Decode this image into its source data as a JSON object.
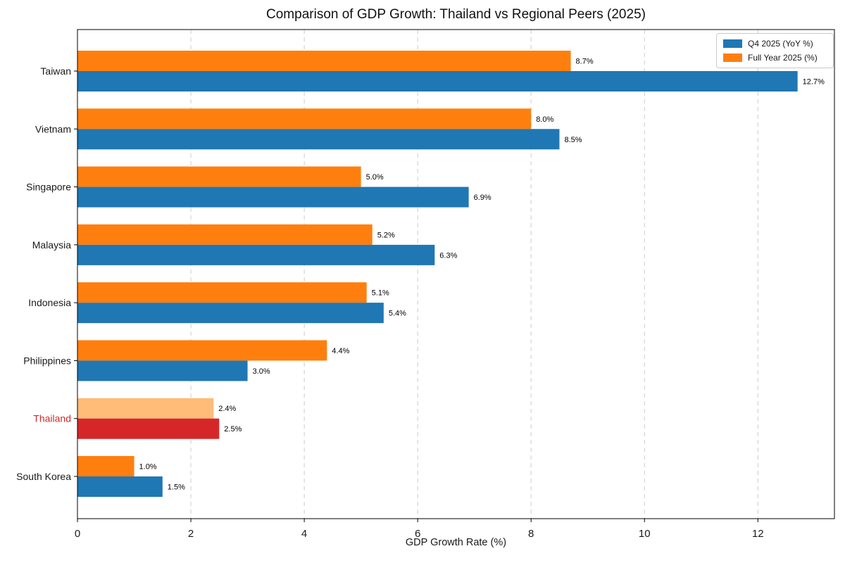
{
  "window": {
    "background": "#ffffff"
  },
  "chart_data": {
    "type": "bar",
    "orientation": "horizontal",
    "title": "Comparison of GDP Growth: Thailand vs Regional Peers (2025)",
    "xlabel": "GDP Growth Rate (%)",
    "ylabel": "",
    "xlim": [
      0,
      13.35
    ],
    "xticks": [
      0,
      2,
      4,
      6,
      8,
      10,
      12
    ],
    "grid": {
      "axis": "x",
      "style": "dashed",
      "color": "#cccccc"
    },
    "legend": {
      "position": "upper-right"
    },
    "categories": [
      "Taiwan",
      "Vietnam",
      "Singapore",
      "Malaysia",
      "Indonesia",
      "Philippines",
      "Thailand",
      "South Korea"
    ],
    "highlight": {
      "category": "Thailand",
      "label_color": "#d62728"
    },
    "series": [
      {
        "name": "Q4 2025 (YoY %)",
        "color": "#1f77b4",
        "highlight_color": "#d62728",
        "values": [
          12.7,
          8.5,
          6.9,
          6.3,
          5.4,
          3.0,
          2.5,
          1.5
        ]
      },
      {
        "name": "Full Year 2025 (%)",
        "color": "#ff7f0e",
        "highlight_color": "#ffbb78",
        "values": [
          8.7,
          8.0,
          5.0,
          5.2,
          5.1,
          4.4,
          2.4,
          1.0
        ]
      }
    ],
    "value_label_format": "%.1f%%",
    "axis_text_color": "#1a1a1a"
  }
}
